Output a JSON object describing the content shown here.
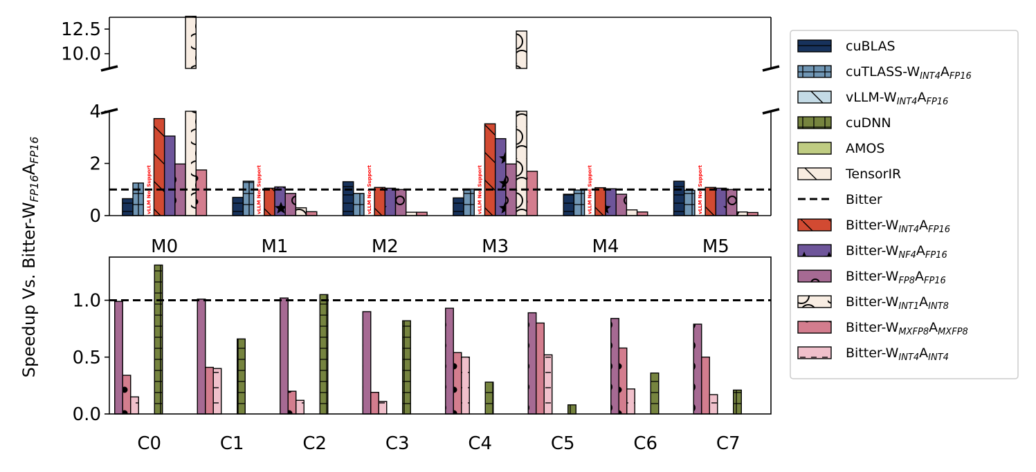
{
  "chart_data": {
    "type": "bar",
    "ylabel": "Speedup Vs. Bitter-W_{FP16}A_{FP16}",
    "legend_position": "right",
    "reference_line": {
      "value": 1.0,
      "label": "Bitter"
    },
    "annotation_text": "vLLM Not Support",
    "series_styles": [
      {
        "name": "cuBLAS",
        "color": "#17325c"
      },
      {
        "name": "cuTLASS-W_{INT4}A_{FP16}",
        "color": "#7096b4"
      },
      {
        "name": "vLLM-W_{INT4}A_{FP16}",
        "color": "#c4dbe6"
      },
      {
        "name": "cuDNN",
        "color": "#76843f"
      },
      {
        "name": "AMOS",
        "color": "#bfcc82"
      },
      {
        "name": "TensorIR",
        "color": "#f8ece0"
      },
      {
        "name": "Bitter-W_{INT4}A_{FP16}",
        "color": "#d24a32"
      },
      {
        "name": "Bitter-W_{NF4}A_{FP16}",
        "color": "#6e559a"
      },
      {
        "name": "Bitter-W_{FP8}A_{FP16}",
        "color": "#a66a93"
      },
      {
        "name": "Bitter-W_{INT1}A_{INT8}",
        "color": "#f8ede3"
      },
      {
        "name": "Bitter-W_{MXFP8}A_{MXFP8}",
        "color": "#d37d8e"
      },
      {
        "name": "Bitter-W_{INT4}A_{INT4}",
        "color": "#f0c0cb"
      }
    ],
    "legend": [
      {
        "label": "cuBLAS",
        "kind": "patch",
        "color": "#17325c"
      },
      {
        "label": "cuTLASS-W_{INT4}A_{FP16}",
        "kind": "patch",
        "color": "#7096b4"
      },
      {
        "label": "vLLM-W_{INT4}A_{FP16}",
        "kind": "patch",
        "color": "#c4dbe6"
      },
      {
        "label": "cuDNN",
        "kind": "patch",
        "color": "#76843f"
      },
      {
        "label": "AMOS",
        "kind": "patch",
        "color": "#bfcc82"
      },
      {
        "label": "TensorIR",
        "kind": "patch",
        "color": "#f8ece0"
      },
      {
        "label": "Bitter",
        "kind": "line",
        "color": "#000000"
      },
      {
        "label": "Bitter-W_{INT4}A_{FP16}",
        "kind": "patch",
        "color": "#d24a32"
      },
      {
        "label": "Bitter-W_{NF4}A_{FP16}",
        "kind": "patch",
        "color": "#6e559a"
      },
      {
        "label": "Bitter-W_{FP8}A_{FP16}",
        "kind": "patch",
        "color": "#a66a93"
      },
      {
        "label": "Bitter-W_{INT1}A_{INT8}",
        "kind": "patch",
        "color": "#f8ede3"
      },
      {
        "label": "Bitter-W_{MXFP8}A_{MXFP8}",
        "kind": "patch",
        "color": "#d37d8e"
      },
      {
        "label": "Bitter-W_{INT4}A_{INT4}",
        "kind": "patch",
        "color": "#f0c0cb"
      }
    ],
    "top_panel": {
      "categories": [
        "M0",
        "M1",
        "M2",
        "M3",
        "M4",
        "M5"
      ],
      "broken_axis": {
        "lower_ylim": [
          0,
          4
        ],
        "lower_ticks": [
          "0",
          "2",
          "4"
        ],
        "upper_ylim": [
          8.5,
          13.7
        ],
        "upper_ticks": [
          "10.0",
          "12.5"
        ]
      },
      "series": [
        {
          "name": "cuBLAS",
          "values": [
            0.65,
            0.7,
            1.3,
            0.68,
            0.82,
            1.32
          ]
        },
        {
          "name": "cuTLASS-W_{INT4}A_{FP16}",
          "values": [
            1.25,
            1.32,
            0.85,
            1.02,
            0.98,
            0.97
          ]
        },
        {
          "name": "vLLM-W_{INT4}A_{FP16}",
          "values": [
            0,
            0,
            0,
            0,
            0,
            0
          ]
        },
        {
          "name": "Bitter-W_{INT4}A_{FP16}",
          "values": [
            3.72,
            1.05,
            1.08,
            3.52,
            1.07,
            1.08
          ]
        },
        {
          "name": "Bitter-W_{NF4}A_{FP16}",
          "values": [
            3.05,
            1.1,
            1.05,
            2.95,
            1.03,
            1.05
          ]
        },
        {
          "name": "Bitter-W_{FP8}A_{FP16}",
          "values": [
            1.98,
            0.85,
            1.0,
            1.98,
            0.82,
            1.0
          ]
        },
        {
          "name": "Bitter-W_{INT1}A_{INT8}",
          "values": [
            13.8,
            0.3,
            0.13,
            12.3,
            0.22,
            0.14
          ]
        },
        {
          "name": "Bitter-W_{MXFP8}A_{MXFP8}",
          "values": [
            1.75,
            0.15,
            0.13,
            1.7,
            0.14,
            0.12
          ]
        }
      ]
    },
    "bottom_panel": {
      "categories": [
        "C0",
        "C1",
        "C2",
        "C3",
        "C4",
        "C5",
        "C6",
        "C7"
      ],
      "ylim": [
        0,
        1.38
      ],
      "ticks": [
        "0.0",
        "0.5",
        "1.0"
      ],
      "series": [
        {
          "name": "Bitter-W_{FP8}A_{FP16}",
          "values": [
            0.99,
            1.01,
            1.02,
            0.9,
            0.93,
            0.89,
            0.84,
            0.79
          ]
        },
        {
          "name": "Bitter-W_{MXFP8}A_{MXFP8}",
          "values": [
            0.34,
            0.41,
            0.2,
            0.19,
            0.54,
            0.8,
            0.58,
            0.5
          ]
        },
        {
          "name": "Bitter-W_{INT4}A_{INT4}",
          "values": [
            0.15,
            0.4,
            0.12,
            0.11,
            0.5,
            0.52,
            0.22,
            0.17
          ]
        },
        {
          "name": "cuDNN",
          "values": [
            1.31,
            0.66,
            1.05,
            0.82,
            0.28,
            0.08,
            0.36,
            0.21
          ]
        }
      ]
    }
  }
}
